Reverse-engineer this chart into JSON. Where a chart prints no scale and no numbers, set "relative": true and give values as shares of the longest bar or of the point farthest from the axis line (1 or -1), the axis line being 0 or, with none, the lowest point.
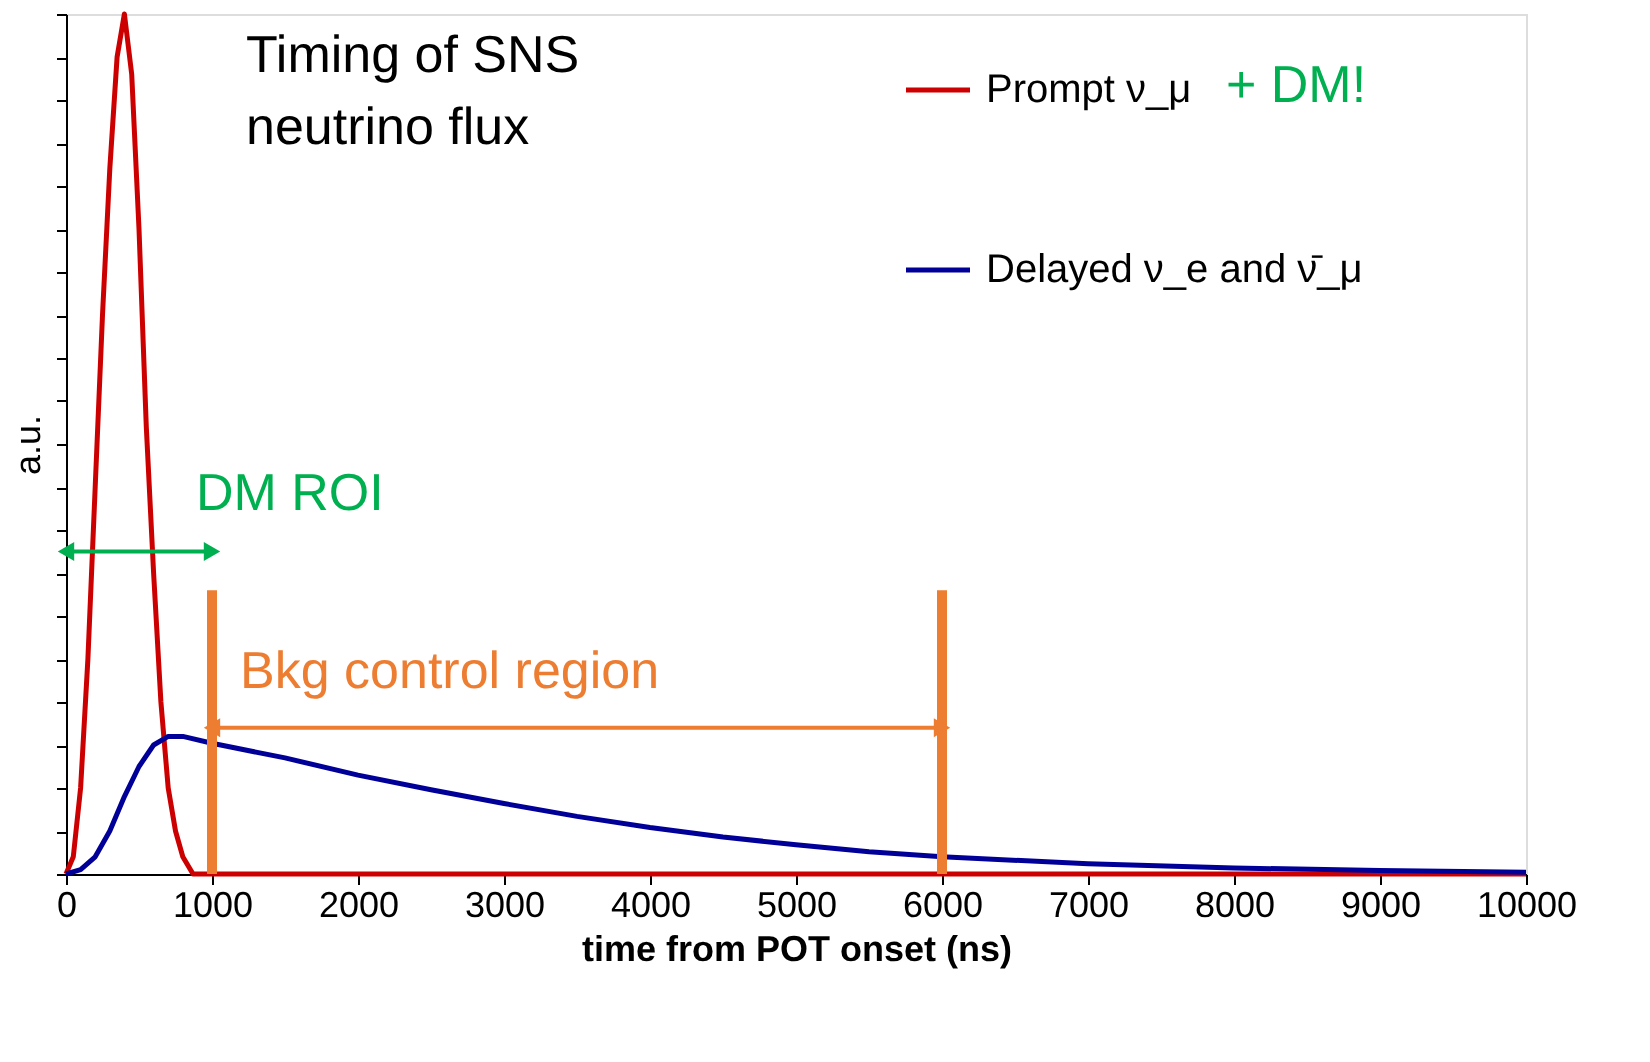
{
  "chart_data": {
    "type": "line",
    "title": "Timing of SNS\nneutrino flux",
    "xlabel": "time from POT onset (ns)",
    "ylabel": "a.u.",
    "relative": true,
    "legend": "top right",
    "grid": false,
    "xlim": [
      0,
      10000
    ],
    "xticks": [
      0,
      1000,
      2000,
      3000,
      4000,
      5000,
      6000,
      7000,
      8000,
      9000,
      10000
    ],
    "series": [
      {
        "name": "Prompt ν_μ",
        "color": "#cc0000",
        "x": [
          0,
          50,
          100,
          150,
          200,
          250,
          300,
          350,
          400,
          450,
          500,
          550,
          600,
          650,
          700,
          750,
          800,
          870,
          1000,
          10000
        ],
        "values": [
          0,
          0.02,
          0.1,
          0.25,
          0.45,
          0.65,
          0.82,
          0.95,
          1.0,
          0.93,
          0.75,
          0.52,
          0.35,
          0.2,
          0.1,
          0.05,
          0.02,
          0,
          0,
          0
        ]
      },
      {
        "name": "Delayed ν_e and ν̄_μ",
        "color": "#000099",
        "x": [
          0,
          100,
          200,
          300,
          400,
          500,
          600,
          700,
          800,
          1000,
          1500,
          2000,
          2500,
          3000,
          3500,
          4000,
          4500,
          5000,
          5500,
          6000,
          7000,
          8000,
          9000,
          10000
        ],
        "values": [
          0,
          0.005,
          0.02,
          0.05,
          0.09,
          0.125,
          0.15,
          0.16,
          0.16,
          0.152,
          0.135,
          0.115,
          0.098,
          0.082,
          0.067,
          0.054,
          0.043,
          0.034,
          0.026,
          0.02,
          0.012,
          0.007,
          0.004,
          0.002
        ]
      }
    ],
    "annotations": [
      "+ DM!",
      "DM ROI",
      "Bkg control region"
    ],
    "ref_lines": [
      {
        "axis": "x",
        "value": 1000,
        "color": "#ed7d31"
      },
      {
        "axis": "x",
        "value": 6000,
        "color": "#ed7d31"
      }
    ]
  }
}
